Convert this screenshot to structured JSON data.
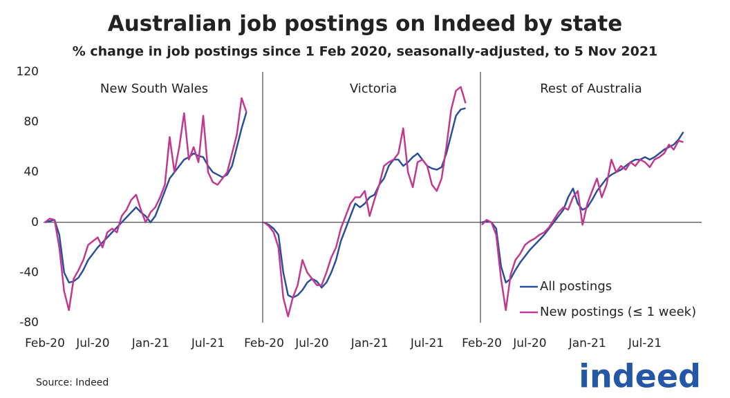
{
  "title": "Australian job postings on Indeed by state",
  "subtitle": "% change in job postings since 1 Feb 2020, seasonally-adjusted, to 5 Nov 2021",
  "source": "Source: Indeed",
  "logo": "indeed",
  "chart_data": [
    {
      "type": "line",
      "title": "New South Wales",
      "categories": [
        "Feb-20",
        null,
        null,
        null,
        null,
        null,
        null,
        null,
        null,
        null,
        "Jul-20",
        null,
        null,
        null,
        null,
        null,
        null,
        null,
        null,
        null,
        null,
        null,
        "Jan-21",
        null,
        null,
        null,
        null,
        null,
        null,
        null,
        null,
        null,
        null,
        null,
        "Jul-21",
        null,
        null,
        null,
        null,
        null,
        null,
        null,
        null
      ],
      "ylim": [
        -80,
        120
      ],
      "yticks": [
        -80,
        -40,
        0,
        40,
        80,
        120
      ],
      "series": [
        {
          "color": "#2a4f9a",
          "values": [
            0,
            1,
            2,
            -10,
            -40,
            -48,
            -47,
            -44,
            -38,
            -30,
            -25,
            -20,
            -16,
            -12,
            -8,
            -4,
            0,
            4,
            8,
            12,
            8,
            5,
            0,
            5,
            15,
            25,
            35,
            40,
            45,
            50,
            52,
            55,
            53,
            52,
            45,
            40,
            38,
            36,
            38,
            45,
            60,
            75,
            88
          ]
        },
        {
          "color": "#c2378f",
          "values": [
            0,
            3,
            2,
            -20,
            -55,
            -70,
            -45,
            -38,
            -30,
            -18,
            -15,
            -12,
            -20,
            -8,
            -5,
            -8,
            5,
            10,
            18,
            22,
            10,
            0,
            8,
            12,
            20,
            30,
            68,
            40,
            60,
            87,
            50,
            60,
            48,
            85,
            40,
            32,
            30,
            35,
            40,
            55,
            70,
            99,
            88
          ]
        }
      ]
    },
    {
      "type": "line",
      "title": "Victoria",
      "categories": [
        "Feb-20",
        null,
        null,
        null,
        null,
        null,
        null,
        null,
        null,
        null,
        "Jul-20",
        null,
        null,
        null,
        null,
        null,
        null,
        null,
        null,
        null,
        null,
        null,
        "Jan-21",
        null,
        null,
        null,
        null,
        null,
        null,
        null,
        null,
        null,
        null,
        null,
        "Jul-21",
        null,
        null,
        null,
        null,
        null,
        null,
        null,
        null
      ],
      "ylim": [
        -80,
        120
      ],
      "series": [
        {
          "color": "#2a4f9a",
          "values": [
            0,
            -2,
            -5,
            -10,
            -40,
            -58,
            -60,
            -58,
            -54,
            -48,
            -45,
            -47,
            -52,
            -48,
            -40,
            -30,
            -15,
            -5,
            5,
            15,
            12,
            15,
            20,
            22,
            30,
            35,
            45,
            50,
            50,
            45,
            48,
            52,
            55,
            50,
            45,
            43,
            42,
            44,
            55,
            70,
            85,
            90,
            91
          ]
        },
        {
          "color": "#c2378f",
          "values": [
            0,
            -3,
            -8,
            -20,
            -60,
            -75,
            -60,
            -50,
            -30,
            -40,
            -45,
            -50,
            -50,
            -40,
            -28,
            -20,
            -5,
            5,
            15,
            20,
            20,
            25,
            5,
            18,
            30,
            45,
            48,
            50,
            55,
            75,
            40,
            28,
            48,
            50,
            45,
            30,
            25,
            35,
            60,
            90,
            105,
            108,
            95
          ]
        }
      ]
    },
    {
      "type": "line",
      "title": "Rest of Australia",
      "categories": [
        "Feb-20",
        null,
        null,
        null,
        null,
        null,
        null,
        null,
        null,
        null,
        "Jul-20",
        null,
        null,
        null,
        null,
        null,
        null,
        null,
        null,
        null,
        null,
        null,
        "Jan-21",
        null,
        null,
        null,
        null,
        null,
        null,
        null,
        null,
        null,
        null,
        null,
        "Jul-21",
        null,
        null,
        null,
        null,
        null,
        null,
        null,
        null
      ],
      "ylim": [
        -80,
        120
      ],
      "legend": "lower right",
      "series": [
        {
          "name": "All postings",
          "color": "#2a4f9a",
          "values": [
            0,
            1,
            0,
            -5,
            -35,
            -48,
            -45,
            -38,
            -32,
            -27,
            -22,
            -18,
            -14,
            -10,
            -5,
            0,
            5,
            10,
            20,
            27,
            15,
            10,
            12,
            18,
            25,
            30,
            35,
            38,
            40,
            42,
            45,
            48,
            50,
            50,
            52,
            50,
            52,
            55,
            58,
            60,
            62,
            66,
            72
          ]
        },
        {
          "name": "New postings  (≤ 1 week)",
          "color": "#c2378f",
          "values": [
            -2,
            2,
            0,
            -10,
            -45,
            -70,
            -42,
            -30,
            -25,
            -18,
            -15,
            -13,
            -10,
            -8,
            -4,
            2,
            8,
            12,
            10,
            20,
            25,
            -2,
            15,
            25,
            35,
            20,
            30,
            50,
            40,
            45,
            42,
            48,
            45,
            50,
            48,
            44,
            50,
            52,
            55,
            62,
            58,
            65,
            64
          ]
        }
      ]
    }
  ]
}
